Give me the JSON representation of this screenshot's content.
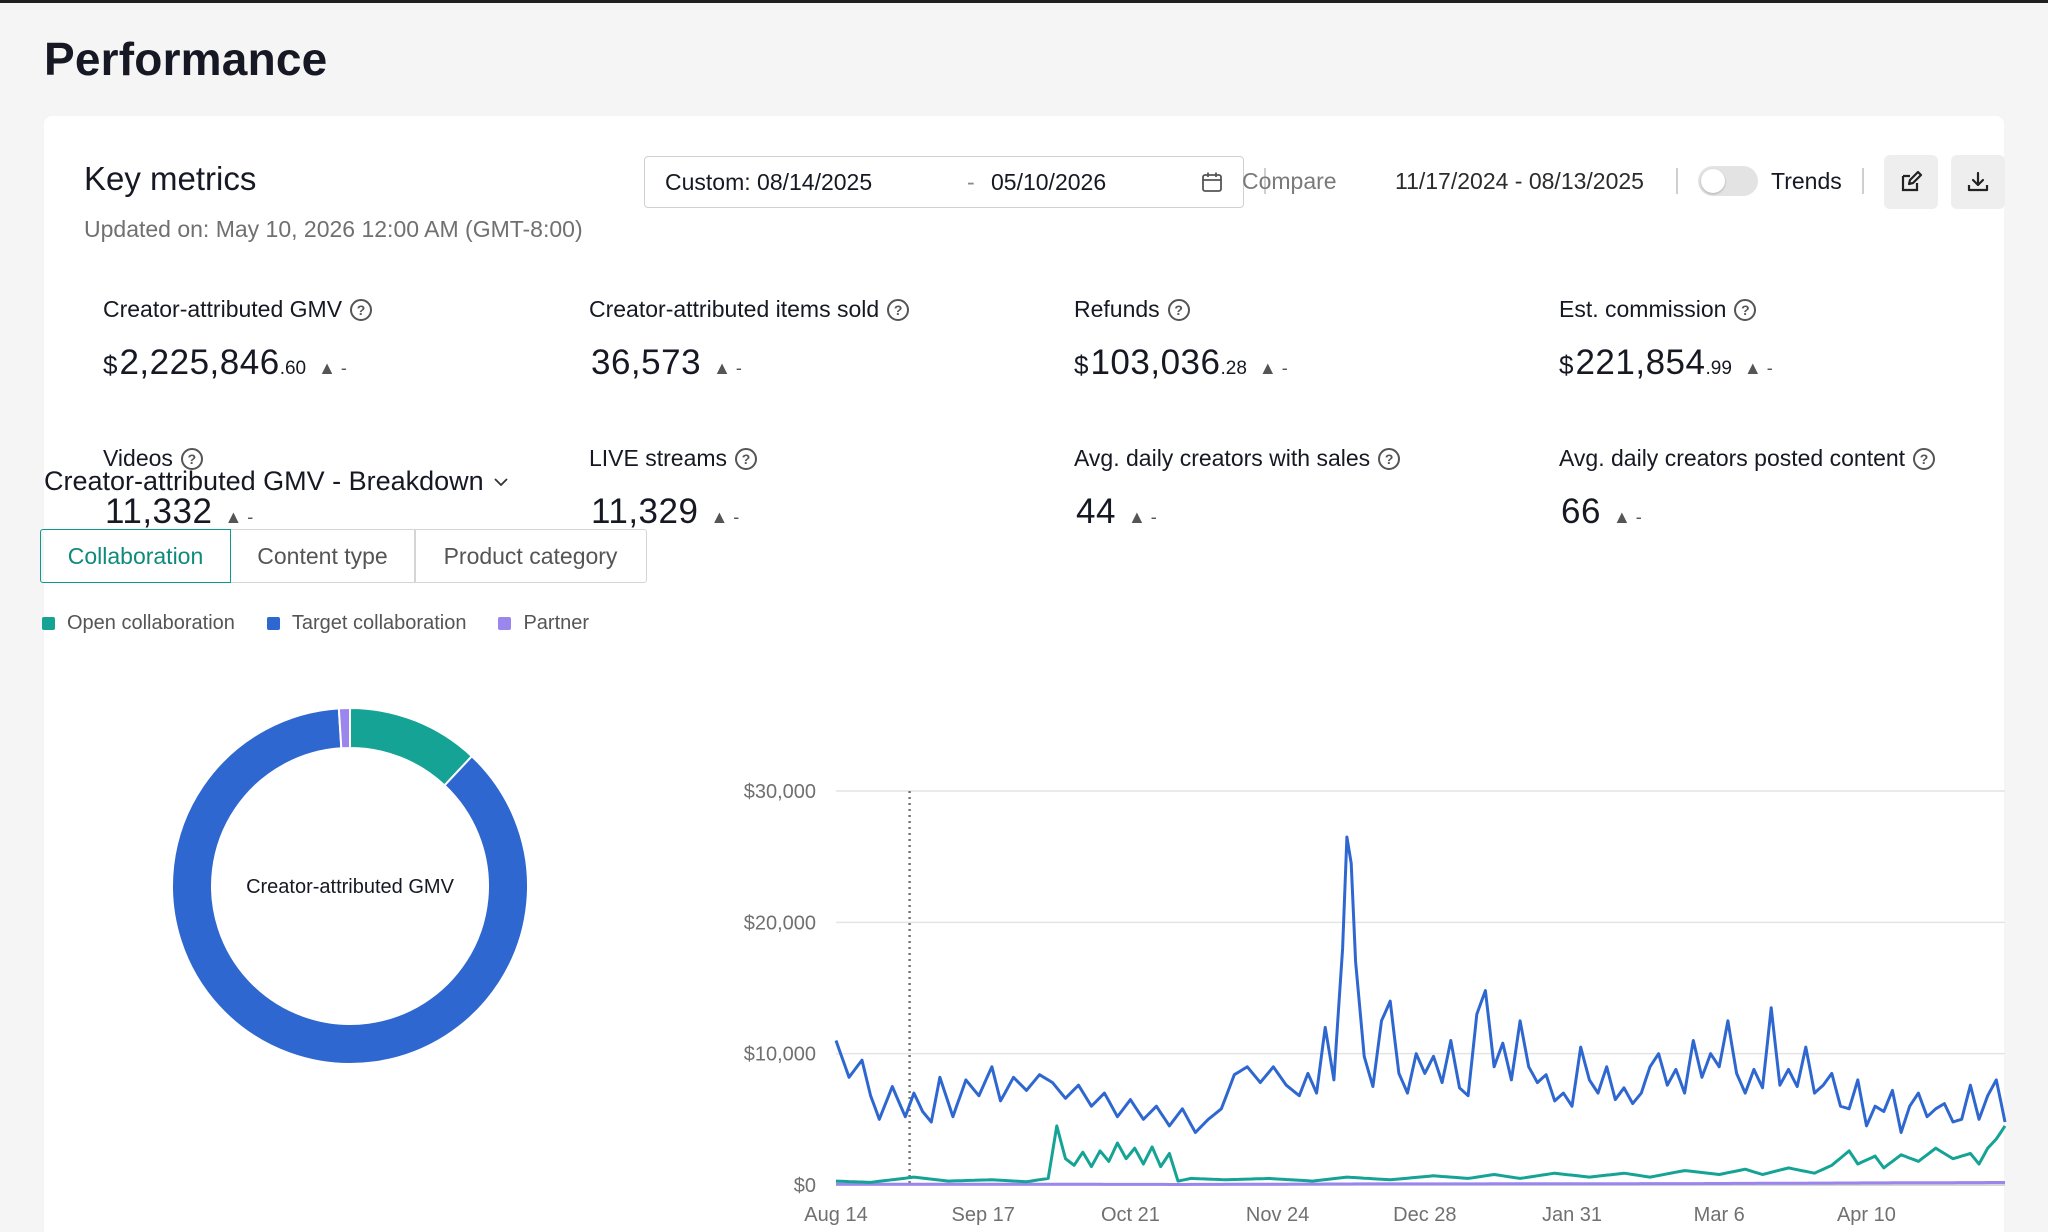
{
  "page": {
    "title": "Performance"
  },
  "key_metrics": {
    "title": "Key metrics",
    "updated": "Updated on: May 10, 2026 12:00 AM (GMT-8:00)",
    "date_start": "Custom: 08/14/2025",
    "date_dash": "-",
    "date_end": "05/10/2026",
    "compare_label": "Compare",
    "compare_range": "11/17/2024 - 08/13/2025",
    "trends_label": "Trends",
    "trends_enabled": false
  },
  "metrics": [
    {
      "label": "Creator-attributed GMV",
      "currency": "$",
      "value": "2,225,846",
      "cents": ".60",
      "delta": "▲ -"
    },
    {
      "label": "Creator-attributed items sold",
      "currency": "",
      "value": "36,573",
      "cents": "",
      "delta": "▲ -"
    },
    {
      "label": "Refunds",
      "currency": "$",
      "value": "103,036",
      "cents": ".28",
      "delta": "▲ -"
    },
    {
      "label": "Est. commission",
      "currency": "$",
      "value": "221,854",
      "cents": ".99",
      "delta": "▲ -"
    },
    {
      "label": "Videos",
      "currency": "",
      "value": "11,332",
      "cents": "",
      "delta": "▲ -"
    },
    {
      "label": "LIVE streams",
      "currency": "",
      "value": "11,329",
      "cents": "",
      "delta": "▲ -"
    },
    {
      "label": "Avg. daily creators with sales",
      "currency": "",
      "value": "44",
      "cents": "",
      "delta": "▲ -"
    },
    {
      "label": "Avg. daily creators posted content",
      "currency": "",
      "value": "66",
      "cents": "",
      "delta": "▲ -"
    }
  ],
  "breakdown": {
    "title": "Creator-attributed GMV - Breakdown",
    "tabs": [
      "Collaboration",
      "Content type",
      "Product category"
    ],
    "active_tab": 0,
    "donut_center_label": "Creator-attributed GMV"
  },
  "colors": {
    "open": "#14a394",
    "target": "#2f67d0",
    "partner": "#9b86ee",
    "accent": "#0e9a8a"
  },
  "chart_data": [
    {
      "type": "pie",
      "variant": "donut",
      "center_label": "Creator-attributed GMV",
      "slices": [
        {
          "name": "Open collaboration",
          "share": 0.12,
          "color": "#14a394"
        },
        {
          "name": "Target collaboration",
          "share": 0.87,
          "color": "#2f67d0"
        },
        {
          "name": "Partner",
          "share": 0.01,
          "color": "#9b86ee"
        }
      ]
    },
    {
      "type": "line",
      "x_ticks": [
        "Aug 14",
        "Sep 17",
        "Oct 21",
        "Nov 24",
        "Dec 28",
        "Jan 31",
        "Mar 6",
        "Apr 10"
      ],
      "x_range": [
        "Aug 14",
        "May 10"
      ],
      "ylim": [
        0,
        30000
      ],
      "y_ticks": [
        "$0",
        "$10,000",
        "$20,000",
        "$30,000"
      ],
      "grid": true,
      "marker_line_x": "Aug 31",
      "series": [
        {
          "name": "Target collaboration",
          "color": "#2f67d0",
          "anchors": [
            [
              0,
              11000
            ],
            [
              3,
              8200
            ],
            [
              6,
              9500
            ],
            [
              8,
              6800
            ],
            [
              10,
              5000
            ],
            [
              13,
              7500
            ],
            [
              16,
              5200
            ],
            [
              18,
              7000
            ],
            [
              20,
              5600
            ],
            [
              22,
              4800
            ],
            [
              24,
              8200
            ],
            [
              27,
              5200
            ],
            [
              30,
              8000
            ],
            [
              33,
              6800
            ],
            [
              36,
              9000
            ],
            [
              38,
              6400
            ],
            [
              41,
              8200
            ],
            [
              44,
              7200
            ],
            [
              47,
              8400
            ],
            [
              50,
              7800
            ],
            [
              53,
              6600
            ],
            [
              56,
              7600
            ],
            [
              59,
              6000
            ],
            [
              62,
              7000
            ],
            [
              65,
              5200
            ],
            [
              68,
              6500
            ],
            [
              71,
              5000
            ],
            [
              74,
              6000
            ],
            [
              77,
              4500
            ],
            [
              80,
              5800
            ],
            [
              83,
              4000
            ],
            [
              86,
              5000
            ],
            [
              89,
              5800
            ],
            [
              92,
              8400
            ],
            [
              95,
              9000
            ],
            [
              98,
              7800
            ],
            [
              101,
              9000
            ],
            [
              104,
              7600
            ],
            [
              107,
              6800
            ],
            [
              109,
              8500
            ],
            [
              111,
              7000
            ],
            [
              113,
              12000
            ],
            [
              115,
              8000
            ],
            [
              117,
              18000
            ],
            [
              118,
              26500
            ],
            [
              119,
              24500
            ],
            [
              120,
              17000
            ],
            [
              122,
              9800
            ],
            [
              124,
              7500
            ],
            [
              126,
              12500
            ],
            [
              128,
              14000
            ],
            [
              130,
              8500
            ],
            [
              132,
              7000
            ],
            [
              134,
              10000
            ],
            [
              136,
              8500
            ],
            [
              138,
              9800
            ],
            [
              140,
              7800
            ],
            [
              142,
              11000
            ],
            [
              144,
              7400
            ],
            [
              146,
              6800
            ],
            [
              148,
              13000
            ],
            [
              150,
              14800
            ],
            [
              152,
              9000
            ],
            [
              154,
              10800
            ],
            [
              156,
              8000
            ],
            [
              158,
              12500
            ],
            [
              160,
              9000
            ],
            [
              162,
              7800
            ],
            [
              164,
              8400
            ],
            [
              166,
              6400
            ],
            [
              168,
              7000
            ],
            [
              170,
              6000
            ],
            [
              172,
              10500
            ],
            [
              174,
              8000
            ],
            [
              176,
              7000
            ],
            [
              178,
              9000
            ],
            [
              180,
              6500
            ],
            [
              182,
              7400
            ],
            [
              184,
              6200
            ],
            [
              186,
              7000
            ],
            [
              188,
              9000
            ],
            [
              190,
              10000
            ],
            [
              192,
              7600
            ],
            [
              194,
              8800
            ],
            [
              196,
              7000
            ],
            [
              198,
              11000
            ],
            [
              200,
              8200
            ],
            [
              202,
              10000
            ],
            [
              204,
              9000
            ],
            [
              206,
              12500
            ],
            [
              208,
              8500
            ],
            [
              210,
              7000
            ],
            [
              212,
              8800
            ],
            [
              214,
              7400
            ],
            [
              216,
              13500
            ],
            [
              218,
              7600
            ],
            [
              220,
              8800
            ],
            [
              222,
              7500
            ],
            [
              224,
              10500
            ],
            [
              226,
              7000
            ],
            [
              228,
              7600
            ],
            [
              230,
              8500
            ],
            [
              232,
              6000
            ],
            [
              234,
              5800
            ],
            [
              236,
              8000
            ],
            [
              238,
              4500
            ],
            [
              240,
              6000
            ],
            [
              242,
              5600
            ],
            [
              244,
              7200
            ],
            [
              246,
              4000
            ],
            [
              248,
              6000
            ],
            [
              250,
              7000
            ],
            [
              252,
              5200
            ],
            [
              254,
              5800
            ],
            [
              256,
              6200
            ],
            [
              258,
              4800
            ],
            [
              260,
              5000
            ],
            [
              262,
              7600
            ],
            [
              264,
              5000
            ],
            [
              266,
              6800
            ],
            [
              268,
              8000
            ],
            [
              270,
              4800
            ],
            [
              272,
              5500
            ],
            [
              274,
              6500
            ],
            [
              276,
              5000
            ],
            [
              278,
              6200
            ]
          ]
        },
        {
          "name": "Open collaboration",
          "color": "#14a394",
          "anchors": [
            [
              0,
              300
            ],
            [
              8,
              200
            ],
            [
              18,
              600
            ],
            [
              26,
              300
            ],
            [
              36,
              400
            ],
            [
              44,
              250
            ],
            [
              49,
              500
            ],
            [
              51,
              4500
            ],
            [
              53,
              2000
            ],
            [
              55,
              1500
            ],
            [
              57,
              2500
            ],
            [
              59,
              1400
            ],
            [
              61,
              2600
            ],
            [
              63,
              1800
            ],
            [
              65,
              3200
            ],
            [
              67,
              2000
            ],
            [
              69,
              2800
            ],
            [
              71,
              1600
            ],
            [
              73,
              2900
            ],
            [
              75,
              1400
            ],
            [
              77,
              2400
            ],
            [
              79,
              300
            ],
            [
              82,
              500
            ],
            [
              90,
              400
            ],
            [
              100,
              500
            ],
            [
              110,
              300
            ],
            [
              118,
              600
            ],
            [
              128,
              400
            ],
            [
              138,
              700
            ],
            [
              146,
              500
            ],
            [
              152,
              800
            ],
            [
              158,
              500
            ],
            [
              166,
              900
            ],
            [
              174,
              600
            ],
            [
              182,
              900
            ],
            [
              188,
              600
            ],
            [
              196,
              1100
            ],
            [
              204,
              800
            ],
            [
              210,
              1200
            ],
            [
              214,
              800
            ],
            [
              220,
              1300
            ],
            [
              226,
              900
            ],
            [
              230,
              1500
            ],
            [
              234,
              2600
            ],
            [
              236,
              1600
            ],
            [
              240,
              2200
            ],
            [
              242,
              1300
            ],
            [
              246,
              2300
            ],
            [
              250,
              1800
            ],
            [
              254,
              2800
            ],
            [
              258,
              2000
            ],
            [
              262,
              2400
            ],
            [
              264,
              1600
            ],
            [
              266,
              2800
            ],
            [
              268,
              3500
            ],
            [
              270,
              4500
            ],
            [
              272,
              3000
            ],
            [
              274,
              2600
            ],
            [
              276,
              2000
            ],
            [
              278,
              2200
            ]
          ]
        },
        {
          "name": "Partner",
          "color": "#9b86ee",
          "anchors": [
            [
              0,
              50
            ],
            [
              40,
              60
            ],
            [
              80,
              40
            ],
            [
              120,
              80
            ],
            [
              160,
              90
            ],
            [
              200,
              110
            ],
            [
              240,
              160
            ],
            [
              260,
              180
            ],
            [
              278,
              200
            ]
          ]
        }
      ]
    }
  ]
}
